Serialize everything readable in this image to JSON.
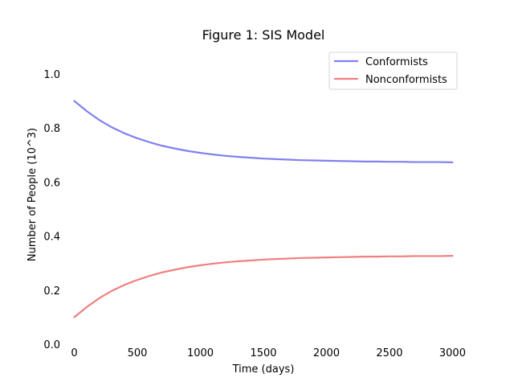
{
  "chart_data": {
    "type": "line",
    "title": "Figure 1: SIS Model",
    "xlabel": "Time (days)",
    "ylabel": "Number of People (10^3)",
    "xlim": [
      -80,
      3080
    ],
    "ylim": [
      0.0,
      1.0
    ],
    "xticks": [
      0,
      500,
      1000,
      1500,
      2000,
      2500,
      3000
    ],
    "xtick_labels": [
      "0",
      "500",
      "1000",
      "1500",
      "2000",
      "2500",
      "3000"
    ],
    "yticks": [
      0.0,
      0.2,
      0.4,
      0.6,
      0.8,
      1.0
    ],
    "ytick_labels": [
      "0.0",
      "0.2",
      "0.4",
      "0.6",
      "0.8",
      "1.0"
    ],
    "grid": false,
    "legend_position": "top-right",
    "x": [
      0,
      100,
      200,
      300,
      400,
      500,
      600,
      700,
      800,
      900,
      1000,
      1100,
      1200,
      1300,
      1400,
      1500,
      1600,
      1700,
      1800,
      1900,
      2000,
      2100,
      2200,
      2300,
      2400,
      2500,
      2600,
      2700,
      2800,
      2900,
      3000
    ],
    "series": [
      {
        "name": "Conformists",
        "color": "#8080f0",
        "values": [
          0.9,
          0.862,
          0.829,
          0.802,
          0.78,
          0.762,
          0.747,
          0.734,
          0.724,
          0.715,
          0.708,
          0.702,
          0.697,
          0.693,
          0.69,
          0.687,
          0.685,
          0.683,
          0.681,
          0.68,
          0.679,
          0.678,
          0.677,
          0.676,
          0.676,
          0.675,
          0.675,
          0.674,
          0.674,
          0.674,
          0.673
        ]
      },
      {
        "name": "Nonconformists",
        "color": "#f08080",
        "values": [
          0.1,
          0.138,
          0.171,
          0.198,
          0.22,
          0.238,
          0.253,
          0.266,
          0.276,
          0.285,
          0.292,
          0.298,
          0.303,
          0.307,
          0.31,
          0.313,
          0.315,
          0.317,
          0.319,
          0.32,
          0.321,
          0.322,
          0.323,
          0.324,
          0.324,
          0.325,
          0.325,
          0.326,
          0.326,
          0.326,
          0.327
        ]
      }
    ]
  }
}
